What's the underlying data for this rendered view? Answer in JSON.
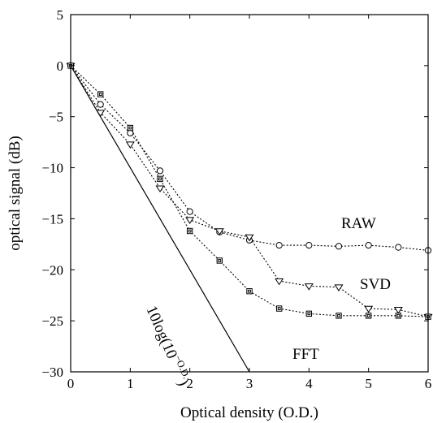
{
  "chart_data": {
    "type": "line",
    "xlabel": "Optical density (O.D.)",
    "ylabel": "optical signal (dB)",
    "xlim": [
      0,
      6
    ],
    "ylim": [
      -30,
      5
    ],
    "x_ticks": [
      0,
      1,
      2,
      3,
      4,
      5,
      6
    ],
    "y_ticks": [
      5,
      0,
      -5,
      -10,
      -15,
      -20,
      -25,
      -30
    ],
    "x_tick_labels": [
      "0",
      "1",
      "2",
      "3",
      "4",
      "5",
      "6"
    ],
    "y_tick_labels": [
      "5",
      "0",
      "−5",
      "−10",
      "−15",
      "−20",
      "−25",
      "−30"
    ],
    "grid": false,
    "x": [
      0,
      0.5,
      1,
      1.5,
      2,
      2.5,
      3,
      3.5,
      4,
      4.5,
      5,
      5.5,
      6
    ],
    "series": [
      {
        "name": "RAW",
        "marker": "circle",
        "values": [
          0,
          -3.8,
          -6.6,
          -10.3,
          -14.3,
          -16.3,
          -17.1,
          -17.6,
          -17.6,
          -17.7,
          -17.6,
          -17.8,
          -18.1
        ]
      },
      {
        "name": "SVD",
        "marker": "triangle-down",
        "values": [
          0,
          -4.6,
          -7.7,
          -12.0,
          -15.1,
          -16.2,
          -16.8,
          -21.1,
          -21.6,
          -21.7,
          -23.8,
          -23.9,
          -24.6
        ]
      },
      {
        "name": "FFT",
        "marker": "square",
        "values": [
          0,
          -2.8,
          -6.1,
          -11.1,
          -16.2,
          -19.1,
          -22.1,
          -23.8,
          -24.3,
          -24.5,
          -24.5,
          -24.5,
          -24.6
        ]
      }
    ],
    "reference_line": {
      "label_main": "10log(10",
      "label_sup": "−O.D.",
      "label_close": ")",
      "x": [
        0,
        3
      ],
      "y": [
        0,
        -30
      ]
    }
  }
}
